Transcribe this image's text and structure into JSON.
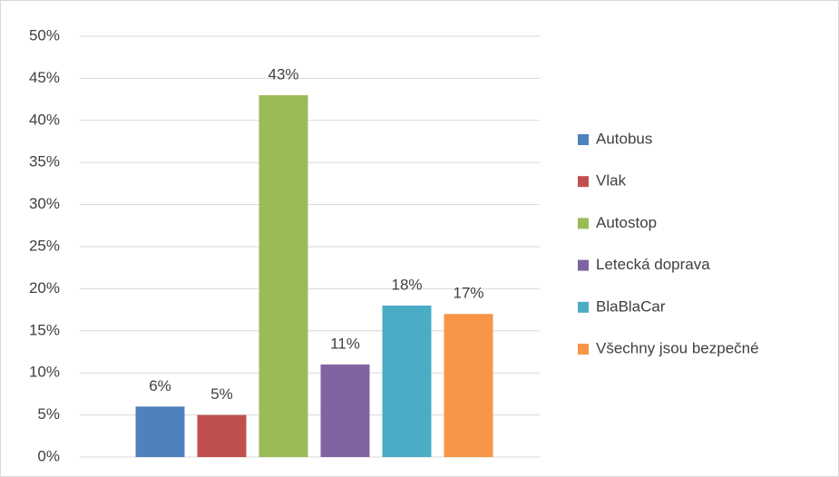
{
  "chart_data": {
    "type": "bar",
    "categories": [
      null
    ],
    "series": [
      {
        "name": "Autobus",
        "color": "#4f81bd",
        "values": [
          6
        ],
        "value_labels": [
          "6%"
        ]
      },
      {
        "name": "Vlak",
        "color": "#c0504d",
        "values": [
          5
        ],
        "value_labels": [
          "5%"
        ]
      },
      {
        "name": "Autostop",
        "color": "#9bbb59",
        "values": [
          43
        ],
        "value_labels": [
          "43%"
        ]
      },
      {
        "name": "Letecká doprava",
        "color": "#8064a2",
        "values": [
          11
        ],
        "value_labels": [
          "11%"
        ]
      },
      {
        "name": "BlaBlaCar",
        "color": "#4bacc6",
        "values": [
          18
        ],
        "value_labels": [
          "18%"
        ]
      },
      {
        "name": "Všechny jsou bezpečné",
        "color": "#f79646",
        "values": [
          17
        ],
        "value_labels": [
          "17%"
        ]
      }
    ],
    "ylim": [
      0,
      50
    ],
    "yticks": [
      {
        "value": 0,
        "label": "0%"
      },
      {
        "value": 5,
        "label": "5%"
      },
      {
        "value": 10,
        "label": "10%"
      },
      {
        "value": 15,
        "label": "15%"
      },
      {
        "value": 20,
        "label": "20%"
      },
      {
        "value": 25,
        "label": "25%"
      },
      {
        "value": 30,
        "label": "30%"
      },
      {
        "value": 35,
        "label": "35%"
      },
      {
        "value": 40,
        "label": "40%"
      },
      {
        "value": 45,
        "label": "45%"
      },
      {
        "value": 50,
        "label": "50%"
      }
    ],
    "grid": true,
    "legend": "right"
  }
}
